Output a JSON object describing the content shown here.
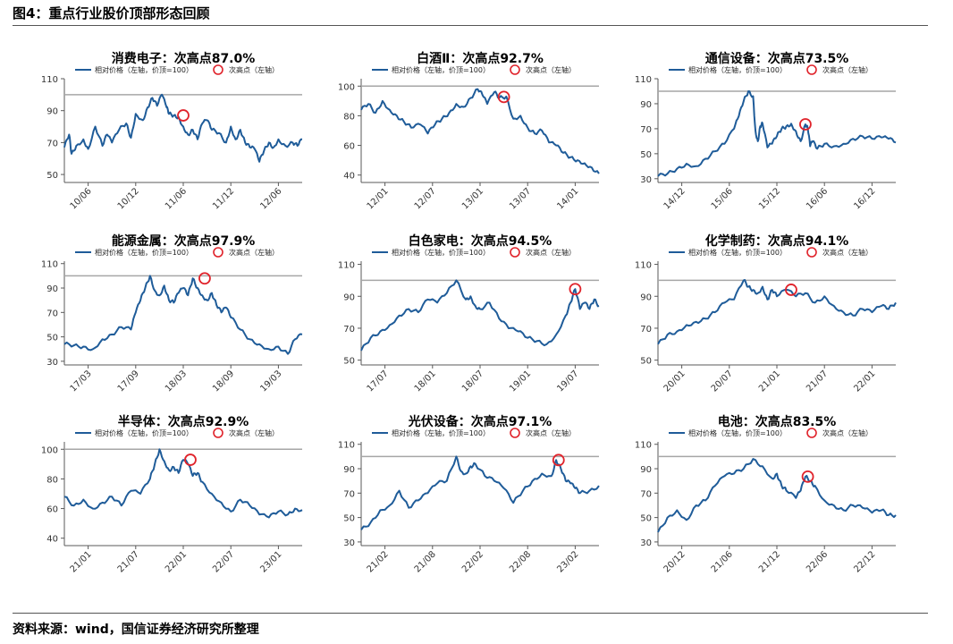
{
  "figure": {
    "title": "图4：重点行业股价顶部形态回顾",
    "source": "资料来源：wind，国信证券经济研究所整理"
  },
  "legend": {
    "line": "相对价格（左轴，价顶=100）",
    "marker": "次高点（左轴）"
  },
  "colors": {
    "line": "#1f5c99",
    "marker": "#e0232b",
    "ref": "#a6a6a6",
    "axis": "#595959"
  },
  "chart_data": [
    {
      "type": "line",
      "title": "消费电子：次高点87.0%",
      "ylim": [
        45,
        110
      ],
      "yticks": [
        50,
        70,
        90,
        110
      ],
      "xticks": [
        "10/06",
        "10/12",
        "11/06",
        "11/12",
        "12/06"
      ],
      "ref_line": 100,
      "x": [
        0,
        0.02,
        0.03,
        0.05,
        0.08,
        0.1,
        0.13,
        0.16,
        0.18,
        0.2,
        0.23,
        0.26,
        0.28,
        0.3,
        0.33,
        0.35,
        0.37,
        0.39,
        0.41,
        0.43,
        0.44,
        0.46,
        0.48,
        0.5,
        0.52,
        0.54,
        0.56,
        0.58,
        0.6,
        0.62,
        0.65,
        0.68,
        0.7,
        0.72,
        0.74,
        0.76,
        0.78,
        0.8,
        0.82,
        0.84,
        0.86,
        0.88,
        0.9,
        0.93,
        0.96,
        0.98,
        1
      ],
      "y": [
        67,
        75,
        63,
        68,
        72,
        66,
        80,
        68,
        75,
        70,
        78,
        82,
        73,
        88,
        84,
        92,
        98,
        93,
        100,
        92,
        88,
        87,
        86,
        80,
        75,
        78,
        72,
        82,
        84,
        78,
        76,
        70,
        80,
        72,
        78,
        70,
        67,
        66,
        58,
        65,
        70,
        67,
        72,
        68,
        70,
        68,
        72
      ],
      "secondary_high": {
        "x": 0.5,
        "y": 87
      }
    },
    {
      "type": "line",
      "title": "白酒Ⅱ：次高点92.7%",
      "ylim": [
        35,
        105
      ],
      "yticks": [
        40,
        60,
        80,
        100
      ],
      "xticks": [
        "12/01",
        "12/07",
        "13/01",
        "13/07",
        "14/01"
      ],
      "ref_line": 100,
      "x": [
        0,
        0.03,
        0.06,
        0.09,
        0.12,
        0.15,
        0.18,
        0.21,
        0.25,
        0.28,
        0.31,
        0.34,
        0.37,
        0.4,
        0.43,
        0.46,
        0.49,
        0.51,
        0.53,
        0.56,
        0.58,
        0.61,
        0.64,
        0.67,
        0.7,
        0.73,
        0.76,
        0.79,
        0.82,
        0.85,
        0.88,
        0.91,
        0.94,
        0.97,
        1
      ],
      "y": [
        84,
        88,
        82,
        90,
        84,
        80,
        76,
        72,
        74,
        68,
        74,
        78,
        82,
        88,
        86,
        92,
        98,
        94,
        88,
        96,
        92,
        93,
        78,
        80,
        72,
        68,
        70,
        62,
        60,
        55,
        52,
        50,
        48,
        45,
        41
      ],
      "secondary_high": {
        "x": 0.6,
        "y": 92.7
      }
    },
    {
      "type": "line",
      "title": "通信设备：次高点73.5%",
      "ylim": [
        27,
        110
      ],
      "yticks": [
        30,
        50,
        70,
        90,
        110
      ],
      "xticks": [
        "14/12",
        "15/06",
        "15/12",
        "16/06",
        "16/12"
      ],
      "ref_line": 100,
      "x": [
        0,
        0.04,
        0.08,
        0.12,
        0.16,
        0.2,
        0.24,
        0.28,
        0.32,
        0.34,
        0.36,
        0.38,
        0.4,
        0.41,
        0.42,
        0.43,
        0.44,
        0.46,
        0.48,
        0.5,
        0.52,
        0.54,
        0.56,
        0.58,
        0.6,
        0.62,
        0.63,
        0.64,
        0.65,
        0.67,
        0.7,
        0.74,
        0.78,
        0.82,
        0.86,
        0.9,
        0.94,
        0.97,
        1
      ],
      "y": [
        32,
        34,
        38,
        42,
        40,
        46,
        52,
        58,
        70,
        80,
        92,
        100,
        96,
        68,
        60,
        72,
        74,
        55,
        58,
        64,
        70,
        72,
        74,
        68,
        60,
        73.5,
        70,
        56,
        60,
        54,
        58,
        56,
        58,
        62,
        64,
        62,
        63,
        62,
        59
      ],
      "secondary_high": {
        "x": 0.62,
        "y": 73.5
      }
    },
    {
      "type": "line",
      "title": "能源金属：次高点97.9%",
      "ylim": [
        27,
        112
      ],
      "yticks": [
        30,
        50,
        70,
        90,
        110
      ],
      "xticks": [
        "17/03",
        "17/09",
        "18/03",
        "18/09",
        "19/03"
      ],
      "ref_line": 100,
      "x": [
        0,
        0.04,
        0.08,
        0.12,
        0.16,
        0.2,
        0.24,
        0.28,
        0.3,
        0.32,
        0.34,
        0.36,
        0.38,
        0.4,
        0.42,
        0.44,
        0.46,
        0.48,
        0.5,
        0.52,
        0.54,
        0.56,
        0.58,
        0.6,
        0.62,
        0.64,
        0.66,
        0.68,
        0.7,
        0.74,
        0.78,
        0.82,
        0.86,
        0.9,
        0.94,
        0.97,
        1
      ],
      "y": [
        44,
        43,
        42,
        40,
        48,
        52,
        58,
        56,
        70,
        80,
        90,
        100,
        88,
        84,
        92,
        80,
        78,
        86,
        90,
        84,
        97.9,
        90,
        84,
        80,
        86,
        76,
        70,
        74,
        66,
        56,
        48,
        44,
        40,
        42,
        36,
        48,
        52
      ],
      "secondary_high": {
        "x": 0.59,
        "y": 97.9
      }
    },
    {
      "type": "line",
      "title": "白色家电：次高点94.5%",
      "ylim": [
        47,
        112
      ],
      "yticks": [
        50,
        70,
        90,
        110
      ],
      "xticks": [
        "17/07",
        "18/01",
        "18/07",
        "19/01",
        "19/07"
      ],
      "ref_line": 100,
      "x": [
        0,
        0.04,
        0.08,
        0.12,
        0.16,
        0.2,
        0.24,
        0.28,
        0.32,
        0.36,
        0.4,
        0.44,
        0.46,
        0.48,
        0.5,
        0.54,
        0.58,
        0.62,
        0.66,
        0.7,
        0.74,
        0.78,
        0.82,
        0.86,
        0.88,
        0.9,
        0.92,
        0.94,
        0.96,
        0.98,
        1
      ],
      "y": [
        56,
        64,
        68,
        72,
        78,
        82,
        80,
        88,
        86,
        92,
        100,
        88,
        90,
        84,
        82,
        86,
        76,
        70,
        68,
        64,
        62,
        60,
        66,
        78,
        86,
        94.5,
        82,
        86,
        82,
        88,
        84
      ],
      "secondary_high": {
        "x": 0.9,
        "y": 94.5
      }
    },
    {
      "type": "line",
      "title": "化学制药：次高点94.1%",
      "ylim": [
        47,
        112
      ],
      "yticks": [
        50,
        70,
        90,
        110
      ],
      "xticks": [
        "20/01",
        "20/07",
        "21/01",
        "21/07",
        "22/01"
      ],
      "ref_line": 100,
      "x": [
        0,
        0.04,
        0.08,
        0.12,
        0.16,
        0.2,
        0.24,
        0.28,
        0.32,
        0.36,
        0.38,
        0.4,
        0.42,
        0.44,
        0.46,
        0.48,
        0.5,
        0.54,
        0.58,
        0.62,
        0.66,
        0.7,
        0.74,
        0.78,
        0.82,
        0.86,
        0.9,
        0.94,
        0.97,
        1
      ],
      "y": [
        60,
        66,
        68,
        72,
        74,
        76,
        80,
        86,
        88,
        100,
        96,
        94,
        92,
        96,
        88,
        94,
        90,
        94.1,
        90,
        92,
        86,
        90,
        84,
        80,
        78,
        82,
        80,
        84,
        82,
        86
      ],
      "secondary_high": {
        "x": 0.56,
        "y": 94.1
      }
    },
    {
      "type": "line",
      "title": "半导体：次高点92.9%",
      "ylim": [
        35,
        105
      ],
      "yticks": [
        40,
        60,
        80,
        100
      ],
      "xticks": [
        "21/01",
        "21/07",
        "22/01",
        "22/07",
        "23/01"
      ],
      "ref_line": 100,
      "x": [
        0,
        0.04,
        0.08,
        0.12,
        0.16,
        0.2,
        0.24,
        0.28,
        0.32,
        0.36,
        0.38,
        0.4,
        0.42,
        0.44,
        0.46,
        0.48,
        0.5,
        0.52,
        0.54,
        0.56,
        0.58,
        0.62,
        0.66,
        0.7,
        0.74,
        0.78,
        0.82,
        0.86,
        0.9,
        0.94,
        0.97,
        1
      ],
      "y": [
        68,
        62,
        66,
        60,
        64,
        68,
        62,
        72,
        70,
        80,
        90,
        100,
        92,
        86,
        88,
        84,
        92.9,
        90,
        82,
        84,
        78,
        70,
        64,
        58,
        66,
        62,
        56,
        54,
        58,
        56,
        60,
        59
      ],
      "secondary_high": {
        "x": 0.53,
        "y": 92.9
      }
    },
    {
      "type": "line",
      "title": "光伏设备：次高点97.1%",
      "ylim": [
        27,
        112
      ],
      "yticks": [
        30,
        50,
        70,
        90,
        110
      ],
      "xticks": [
        "21/02",
        "21/08",
        "22/02",
        "22/08",
        "23/02"
      ],
      "ref_line": 100,
      "x": [
        0,
        0.04,
        0.08,
        0.12,
        0.16,
        0.2,
        0.24,
        0.28,
        0.32,
        0.36,
        0.4,
        0.42,
        0.44,
        0.46,
        0.48,
        0.52,
        0.56,
        0.6,
        0.64,
        0.68,
        0.72,
        0.76,
        0.8,
        0.82,
        0.84,
        0.86,
        0.88,
        0.9,
        0.92,
        0.96,
        1
      ],
      "y": [
        40,
        46,
        56,
        60,
        72,
        58,
        64,
        70,
        78,
        80,
        100,
        88,
        86,
        92,
        94,
        84,
        80,
        74,
        62,
        72,
        80,
        86,
        84,
        97.1,
        90,
        80,
        78,
        74,
        70,
        72,
        76
      ],
      "secondary_high": {
        "x": 0.83,
        "y": 97.1
      }
    },
    {
      "type": "line",
      "title": "电池：次高点83.5%",
      "ylim": [
        27,
        112
      ],
      "yticks": [
        30,
        50,
        70,
        90,
        110
      ],
      "xticks": [
        "20/12",
        "21/06",
        "21/12",
        "22/06",
        "22/12"
      ],
      "ref_line": 100,
      "x": [
        0,
        0.04,
        0.08,
        0.12,
        0.16,
        0.2,
        0.24,
        0.28,
        0.32,
        0.36,
        0.4,
        0.44,
        0.48,
        0.5,
        0.52,
        0.54,
        0.58,
        0.6,
        0.62,
        0.64,
        0.66,
        0.7,
        0.74,
        0.78,
        0.82,
        0.86,
        0.9,
        0.94,
        0.97,
        1
      ],
      "y": [
        38,
        50,
        56,
        48,
        60,
        64,
        76,
        84,
        86,
        90,
        98,
        92,
        82,
        86,
        76,
        72,
        66,
        72,
        83.5,
        80,
        76,
        64,
        60,
        56,
        60,
        58,
        54,
        56,
        52,
        52
      ],
      "secondary_high": {
        "x": 0.63,
        "y": 83.5
      }
    }
  ]
}
